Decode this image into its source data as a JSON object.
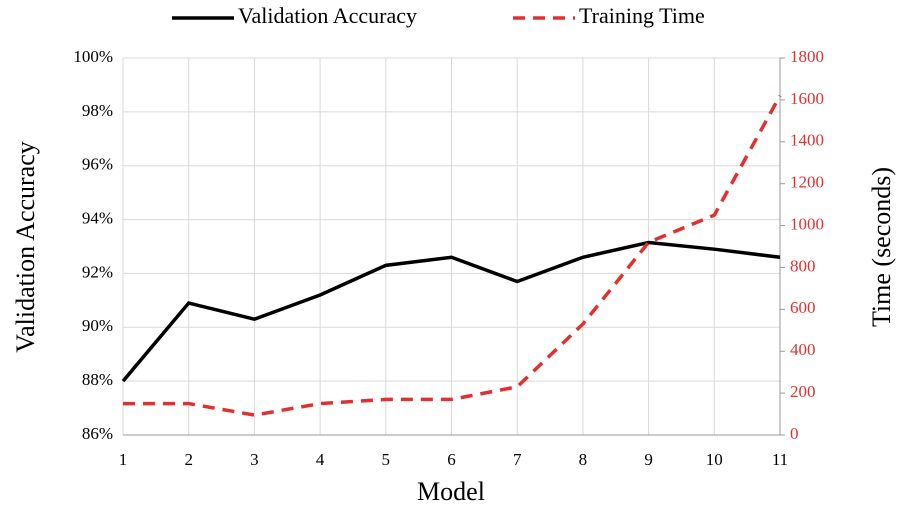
{
  "chart_data": {
    "type": "line",
    "x_label": "Model",
    "y_label": "Validation Accuracy",
    "y2_label": "Time (seconds)",
    "x": [
      1,
      2,
      3,
      4,
      5,
      6,
      7,
      8,
      9,
      10,
      11
    ],
    "xlim": [
      1,
      11
    ],
    "xticks": [
      1,
      2,
      3,
      4,
      5,
      6,
      7,
      8,
      9,
      10,
      11
    ],
    "ylim": [
      86,
      100
    ],
    "yticks": [
      {
        "value": 86,
        "label": "86%"
      },
      {
        "value": 88,
        "label": "88%"
      },
      {
        "value": 90,
        "label": "90%"
      },
      {
        "value": 92,
        "label": "92%"
      },
      {
        "value": 94,
        "label": "94%"
      },
      {
        "value": 96,
        "label": "96%"
      },
      {
        "value": 98,
        "label": "98%"
      },
      {
        "value": 100,
        "label": "100%"
      }
    ],
    "y2lim": [
      0,
      1800
    ],
    "y2ticks": [
      0,
      200,
      400,
      600,
      800,
      1000,
      1200,
      1400,
      1600,
      1800
    ],
    "grid": true,
    "legend": "top",
    "series": [
      {
        "name": "Validation Accuracy",
        "color": "#000000",
        "dash": "solid",
        "values": [
          88.0,
          90.9,
          90.3,
          91.2,
          92.3,
          92.6,
          91.7,
          92.6,
          93.15,
          92.9,
          92.6
        ]
      },
      {
        "name": "Training Time",
        "color": "#e03030",
        "dash": "dashed",
        "axis": "y2",
        "values": [
          150,
          150,
          95,
          150,
          170,
          170,
          230,
          530,
          920,
          1050,
          1620
        ]
      }
    ]
  }
}
